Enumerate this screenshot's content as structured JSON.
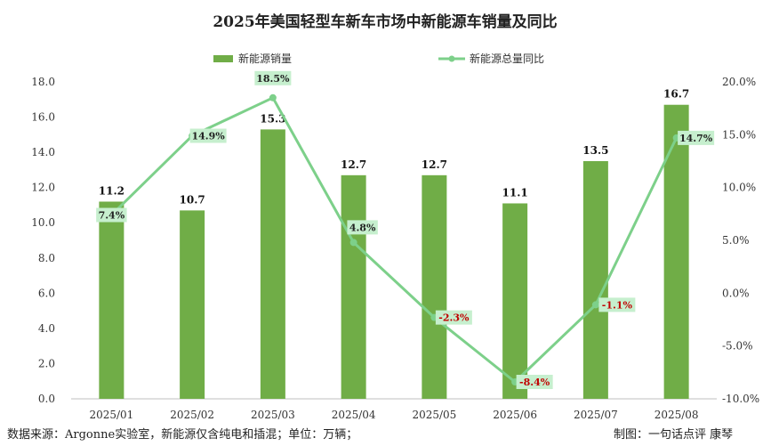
{
  "chart_data": {
    "type": "bar",
    "title": "2025年美国轻型车新车市场中新能源车销量及同比",
    "categories": [
      "2025/01",
      "2025/02",
      "2025/03",
      "2025/04",
      "2025/05",
      "2025/06",
      "2025/07",
      "2025/08"
    ],
    "series": [
      {
        "name": "新能源销量",
        "type": "bar",
        "axis": "left",
        "color": "#70ad47",
        "values": [
          11.2,
          10.7,
          15.3,
          12.7,
          12.7,
          11.1,
          13.5,
          16.7
        ],
        "labels": [
          "11.2",
          "10.7",
          "15.3",
          "12.7",
          "12.7",
          "11.1",
          "13.5",
          "16.7"
        ]
      },
      {
        "name": "新能源总量同比",
        "type": "line",
        "axis": "right",
        "color": "#7dd08a",
        "values": [
          7.4,
          14.9,
          18.5,
          4.8,
          -2.3,
          -8.4,
          -1.1,
          14.7
        ],
        "labels": [
          "7.4%",
          "14.9%",
          "18.5%",
          "4.8%",
          "-2.3%",
          "-8.4%",
          "-1.1%",
          "14.7%"
        ],
        "label_colors": [
          "#222222",
          "#222222",
          "#222222",
          "#222222",
          "#c00000",
          "#c00000",
          "#c00000",
          "#222222"
        ]
      }
    ],
    "ylim": [
      0,
      18
    ],
    "yticks": [
      "0.0",
      "2.0",
      "4.0",
      "6.0",
      "8.0",
      "10.0",
      "12.0",
      "14.0",
      "16.0",
      "18.0"
    ],
    "y2lim": [
      -10,
      20
    ],
    "y2ticks": [
      "-10.0%",
      "-5.0%",
      "0.0%",
      "5.0%",
      "10.0%",
      "15.0%",
      "20.0%"
    ],
    "grid": false,
    "legend_position": "top-center",
    "label_box_color": "#c6efce"
  },
  "footer": {
    "source": "数据来源：Argonne实验室，新能源仅含纯电和插混；单位：万辆；",
    "credit": "制图：一句话点评  康琴"
  }
}
